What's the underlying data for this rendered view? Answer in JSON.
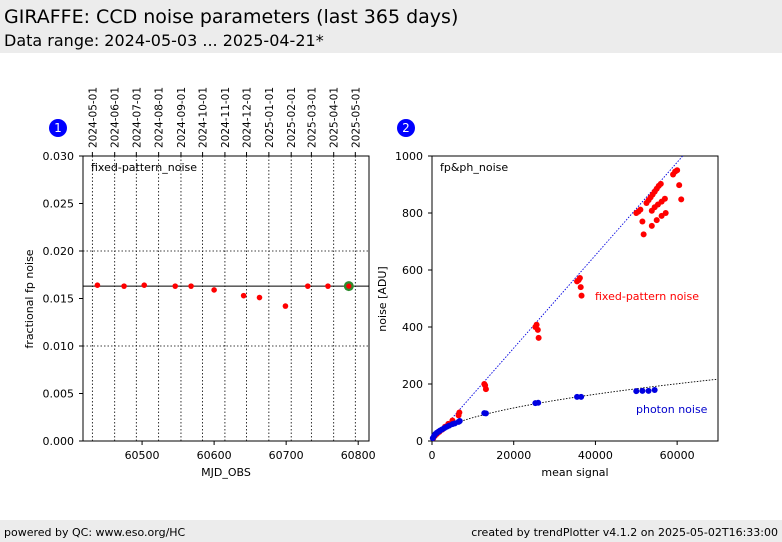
{
  "header": {
    "title": "GIRAFFE: CCD noise parameters (last 365 days)",
    "subtitle": "Data range: 2024-05-03 ... 2025-04-21*"
  },
  "footer": {
    "left": "powered by QC: www.eso.org/HC",
    "right": "created by trendPlotter v4.1.2 on 2025-05-02T16:33:00"
  },
  "colors": {
    "header_bg": "#ececec",
    "marker_red": "#ff0000",
    "marker_blue": "#0000e0",
    "latest_green": "#2e8b2e",
    "badge_blue": "#0000ff",
    "label_red": "#ff0000",
    "label_blue": "#0000cc"
  },
  "chart_data": [
    {
      "type": "scatter",
      "badge": "1",
      "annotation": "fixed-pattern_noise",
      "xlabel": "MJD_OBS",
      "ylabel": "fractional fp noise",
      "xlim": [
        60418,
        60815
      ],
      "ylim": [
        0,
        0.03
      ],
      "xticks": [
        60500,
        60600,
        60700,
        60800
      ],
      "yticks": [
        0.0,
        0.005,
        0.01,
        0.015,
        0.02,
        0.025,
        0.03
      ],
      "ytick_labels": [
        "0.000",
        "0.005",
        "0.010",
        "0.015",
        "0.020",
        "0.025",
        "0.030"
      ],
      "top_axis_dates": [
        {
          "label": "2024-05-01",
          "mjd": 60431
        },
        {
          "label": "2024-06-01",
          "mjd": 60462
        },
        {
          "label": "2024-07-01",
          "mjd": 60492
        },
        {
          "label": "2024-08-01",
          "mjd": 60523
        },
        {
          "label": "2024-09-01",
          "mjd": 60554
        },
        {
          "label": "2024-10-01",
          "mjd": 60584
        },
        {
          "label": "2024-11-01",
          "mjd": 60615
        },
        {
          "label": "2024-12-01",
          "mjd": 60645
        },
        {
          "label": "2025-01-01",
          "mjd": 60676
        },
        {
          "label": "2025-02-01",
          "mjd": 60707
        },
        {
          "label": "2025-03-01",
          "mjd": 60735
        },
        {
          "label": "2025-04-01",
          "mjd": 60766
        },
        {
          "label": "2025-05-01",
          "mjd": 60796
        }
      ],
      "hgrid": [
        0.01,
        0.02
      ],
      "reference_line": 0.0163,
      "series": [
        {
          "points": [
            [
              60438,
              0.0164
            ],
            [
              60475,
              0.0163
            ],
            [
              60503,
              0.0164
            ],
            [
              60546,
              0.0163
            ],
            [
              60568,
              0.0163
            ],
            [
              60600,
              0.0159
            ],
            [
              60641,
              0.0153
            ],
            [
              60663,
              0.0151
            ],
            [
              60699,
              0.0142
            ],
            [
              60730,
              0.0163
            ],
            [
              60758,
              0.0163
            ],
            [
              60786,
              0.0162
            ]
          ]
        }
      ],
      "latest_point": [
        60787,
        0.0163
      ]
    },
    {
      "type": "scatter",
      "badge": "2",
      "annotation": "fp&ph_noise",
      "xlabel": "mean signal",
      "ylabel": "noise [ADU]",
      "xlim": [
        0,
        70000
      ],
      "ylim": [
        0,
        1000
      ],
      "xticks": [
        0,
        20000,
        40000,
        60000
      ],
      "yticks": [
        0,
        200,
        400,
        600,
        800,
        1000
      ],
      "fp_fit_slope": 0.0163,
      "photon_fit_coeff": 0.82,
      "series": [
        {
          "name": "fixed-pattern noise",
          "points": [
            [
              300,
              10
            ],
            [
              700,
              18
            ],
            [
              1200,
              25
            ],
            [
              1800,
              32
            ],
            [
              2500,
              40
            ],
            [
              3200,
              50
            ],
            [
              4000,
              60
            ],
            [
              5000,
              72
            ],
            [
              6500,
              90
            ],
            [
              6700,
              100
            ],
            [
              12800,
              200
            ],
            [
              13000,
              195
            ],
            [
              13200,
              182
            ],
            [
              25300,
              400
            ],
            [
              25600,
              408
            ],
            [
              25900,
              390
            ],
            [
              26100,
              362
            ],
            [
              35500,
              560
            ],
            [
              35900,
              565
            ],
            [
              36200,
              572
            ],
            [
              36400,
              540
            ],
            [
              36600,
              510
            ],
            [
              50000,
              800
            ],
            [
              50500,
              805
            ],
            [
              51000,
              812
            ],
            [
              51500,
              770
            ],
            [
              51800,
              725
            ],
            [
              52500,
              835
            ],
            [
              53000,
              845
            ],
            [
              53500,
              855
            ],
            [
              54000,
              865
            ],
            [
              54500,
              875
            ],
            [
              55000,
              885
            ],
            [
              55500,
              895
            ],
            [
              56000,
              902
            ],
            [
              53800,
              808
            ],
            [
              54500,
              820
            ],
            [
              55300,
              830
            ],
            [
              56200,
              840
            ],
            [
              57000,
              850
            ],
            [
              53800,
              755
            ],
            [
              55000,
              775
            ],
            [
              56200,
              790
            ],
            [
              57200,
              800
            ],
            [
              59000,
              935
            ],
            [
              59500,
              945
            ],
            [
              60000,
              950
            ],
            [
              60500,
              898
            ],
            [
              61000,
              848
            ]
          ]
        },
        {
          "name": "photon noise",
          "points": [
            [
              200,
              10
            ],
            [
              500,
              18
            ],
            [
              800,
              24
            ],
            [
              1200,
              29
            ],
            [
              1600,
              33
            ],
            [
              2000,
              37
            ],
            [
              2500,
              41
            ],
            [
              3000,
              45
            ],
            [
              3600,
              50
            ],
            [
              4200,
              54
            ],
            [
              5000,
              59
            ],
            [
              5600,
              62
            ],
            [
              6500,
              67
            ],
            [
              6800,
              70
            ],
            [
              12800,
              98
            ],
            [
              13200,
              97
            ],
            [
              25300,
              133
            ],
            [
              26000,
              134
            ],
            [
              35500,
              155
            ],
            [
              36500,
              155
            ],
            [
              50000,
              175
            ],
            [
              51500,
              176
            ],
            [
              53000,
              176
            ],
            [
              54500,
              179
            ]
          ]
        }
      ]
    }
  ]
}
